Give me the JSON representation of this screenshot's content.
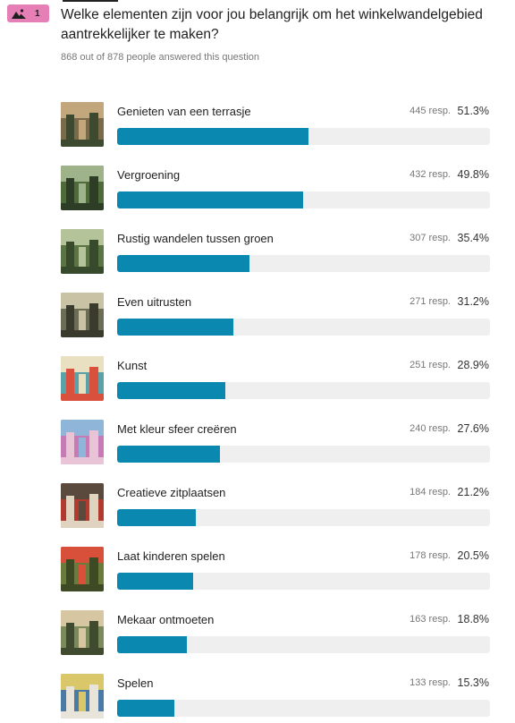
{
  "question": {
    "number": "1",
    "title": "Welke elementen zijn voor jou belangrijk om het winkelwandelgebied aantrekkelijker te maken?",
    "answered_text": "868 out of 878 people answered this question",
    "badge_color": "#e57fb5",
    "badge_icon": "image-icon"
  },
  "bar_color": "#0b88b0",
  "options": [
    {
      "label": "Genieten van een terrasje",
      "responses": "445 resp.",
      "percent": "51.3%",
      "value": 51.3,
      "thumb_colors": [
        "#7a6a4a",
        "#c2a77d",
        "#3e4a2f"
      ]
    },
    {
      "label": "Vergroening",
      "responses": "432 resp.",
      "percent": "49.8%",
      "value": 49.8,
      "thumb_colors": [
        "#4f6b3a",
        "#9fb38a",
        "#2e3d25"
      ]
    },
    {
      "label": "Rustig wandelen tussen groen",
      "responses": "307 resp.",
      "percent": "35.4%",
      "value": 35.4,
      "thumb_colors": [
        "#5a7444",
        "#b4c39a",
        "#384a2c"
      ]
    },
    {
      "label": "Even uitrusten",
      "responses": "271 resp.",
      "percent": "31.2%",
      "value": 31.2,
      "thumb_colors": [
        "#6b6e55",
        "#c9c2a4",
        "#3a3b2c"
      ]
    },
    {
      "label": "Kunst",
      "responses": "251 resp.",
      "percent": "28.9%",
      "value": 28.9,
      "thumb_colors": [
        "#5aa2a8",
        "#e8e0c0",
        "#d9503c"
      ]
    },
    {
      "label": "Met kleur sfeer creëren",
      "responses": "240 resp.",
      "percent": "27.6%",
      "value": 27.6,
      "thumb_colors": [
        "#c77ab6",
        "#8fb6d8",
        "#e9c3d6"
      ]
    },
    {
      "label": "Creatieve zitplaatsen",
      "responses": "184 resp.",
      "percent": "21.2%",
      "value": 21.2,
      "thumb_colors": [
        "#b23a2e",
        "#5a4a3e",
        "#e0d3c0"
      ]
    },
    {
      "label": "Laat kinderen spelen",
      "responses": "178 resp.",
      "percent": "20.5%",
      "value": 20.5,
      "thumb_colors": [
        "#6a7b3c",
        "#d8503a",
        "#3d4a24"
      ]
    },
    {
      "label": "Mekaar ontmoeten",
      "responses": "163 resp.",
      "percent": "18.8%",
      "value": 18.8,
      "thumb_colors": [
        "#7b8a5a",
        "#d6c7a2",
        "#3f4a2e"
      ]
    },
    {
      "label": "Spelen",
      "responses": "133 resp.",
      "percent": "15.3%",
      "value": 15.3,
      "thumb_colors": [
        "#4a7aa6",
        "#d9c76a",
        "#e9e4da"
      ]
    }
  ]
}
